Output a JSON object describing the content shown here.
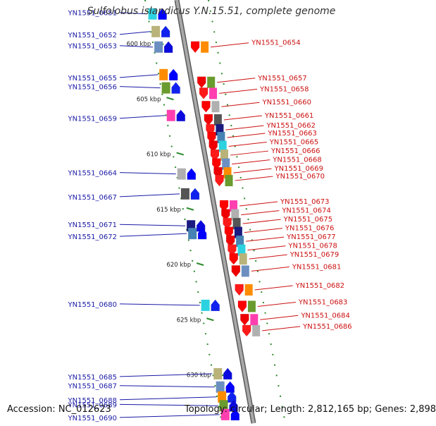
{
  "title": "Sulfolobus islandicus Y.N.15.51, complete genome",
  "footer": {
    "accession": "Accession: NC_012623",
    "summary": "Topology: circular; Length: 2,812,165 bp; Genes: 2,898"
  },
  "colors": {
    "backbone": "#8a8a8a",
    "reverse_label": "#1a1aa6",
    "forward_label": "#cc1111",
    "tick": "#2e8b2e"
  },
  "scale_labels": [
    {
      "text": "600 kbp",
      "kbp": 600
    },
    {
      "text": "605 kbp",
      "kbp": 605
    },
    {
      "text": "610 kbp",
      "kbp": 610
    },
    {
      "text": "615 kbp",
      "kbp": 615
    },
    {
      "text": "620 kbp",
      "kbp": 620
    },
    {
      "text": "625 kbp",
      "kbp": 625
    },
    {
      "text": "630 kbp",
      "kbp": 630
    }
  ],
  "reverse_genes": [
    {
      "label": "YN1551_0651",
      "kbp": 597.3
    },
    {
      "label": "YN1551_0652",
      "kbp": 598.9
    },
    {
      "label": "YN1551_0653",
      "kbp": 600.3
    },
    {
      "label": "YN1551_0655",
      "kbp": 602.8
    },
    {
      "label": "YN1551_0656",
      "kbp": 604.0
    },
    {
      "label": "YN1551_0659",
      "kbp": 606.5
    },
    {
      "label": "YN1551_0664",
      "kbp": 611.8
    },
    {
      "label": "YN1551_0667",
      "kbp": 613.6
    },
    {
      "label": "YN1551_0671",
      "kbp": 616.5
    },
    {
      "label": "YN1551_0672",
      "kbp": 617.2
    },
    {
      "label": "YN1551_0680",
      "kbp": 623.7
    },
    {
      "label": "YN1551_0685",
      "kbp": 629.9
    },
    {
      "label": "YN1551_0687",
      "kbp": 631.1
    },
    {
      "label": "YN1551_0688",
      "kbp": 632.0
    },
    {
      "label": "YN1551_0689",
      "kbp": 632.8
    },
    {
      "label": "YN1551_0690",
      "kbp": 633.6
    }
  ],
  "forward_genes": [
    {
      "label": "YN1551_0654",
      "kbp": 600.3
    },
    {
      "label": "YN1551_0657",
      "kbp": 603.5
    },
    {
      "label": "YN1551_0658",
      "kbp": 604.5
    },
    {
      "label": "YN1551_0660",
      "kbp": 605.7
    },
    {
      "label": "YN1551_0661",
      "kbp": 606.9
    },
    {
      "label": "YN1551_0662",
      "kbp": 607.8
    },
    {
      "label": "YN1551_0663",
      "kbp": 608.5
    },
    {
      "label": "YN1551_0665",
      "kbp": 609.3
    },
    {
      "label": "YN1551_0666",
      "kbp": 610.1
    },
    {
      "label": "YN1551_0668",
      "kbp": 610.9
    },
    {
      "label": "YN1551_0669",
      "kbp": 611.7
    },
    {
      "label": "YN1551_0670",
      "kbp": 612.4
    },
    {
      "label": "YN1551_0673",
      "kbp": 614.7
    },
    {
      "label": "YN1551_0674",
      "kbp": 615.5
    },
    {
      "label": "YN1551_0675",
      "kbp": 616.3
    },
    {
      "label": "YN1551_0676",
      "kbp": 617.1
    },
    {
      "label": "YN1551_0677",
      "kbp": 617.9
    },
    {
      "label": "YN1551_0678",
      "kbp": 618.7
    },
    {
      "label": "YN1551_0679",
      "kbp": 619.5
    },
    {
      "label": "YN1551_0681",
      "kbp": 620.6
    },
    {
      "label": "YN1551_0682",
      "kbp": 622.3
    },
    {
      "label": "YN1551_0683",
      "kbp": 623.8
    },
    {
      "label": "YN1551_0684",
      "kbp": 625.0
    },
    {
      "label": "YN1551_0686",
      "kbp": 626.0
    }
  ]
}
